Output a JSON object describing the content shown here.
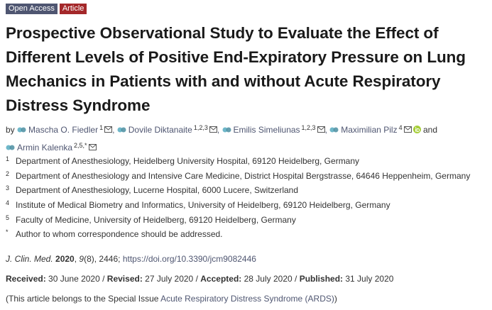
{
  "badges": {
    "open_access": "Open Access",
    "type": "Article"
  },
  "title": "Prospective Observational Study to Evaluate the Effect of Different Levels of Positive End-Expiratory Pressure on Lung Mechanics in Patients with and without Acute Respiratory Distress Syndrome",
  "authors": {
    "by": "by",
    "list": [
      {
        "name": "Mascha O. Fiedler",
        "aff": "1"
      },
      {
        "name": "Dovile Diktanaite",
        "aff": "1,2,3"
      },
      {
        "name": "Emilis Simeliunas",
        "aff": "1,2,3"
      },
      {
        "name": "Maximilian Pilz",
        "aff": "4"
      },
      {
        "name": "Armin Kalenka",
        "aff": "2,5,*"
      }
    ],
    "and": "and"
  },
  "affiliations": [
    {
      "num": "1",
      "text": "Department of Anesthesiology, Heidelberg University Hospital, 69120 Heidelberg, Germany"
    },
    {
      "num": "2",
      "text": "Department of Anesthesiology and Intensive Care Medicine, District Hospital Bergstrasse, 64646 Heppenheim, Germany"
    },
    {
      "num": "3",
      "text": "Department of Anesthesiology, Lucerne Hospital, 6000 Lucere, Switzerland"
    },
    {
      "num": "4",
      "text": "Institute of Medical Biometry and Informatics, University of Heidelberg, 69120 Heidelberg, Germany"
    },
    {
      "num": "5",
      "text": "Faculty of Medicine, University of Heidelberg, 69120 Heidelberg, Germany"
    },
    {
      "num": "*",
      "text": "Author to whom correspondence should be addressed."
    }
  ],
  "citation": {
    "journal": "J. Clin. Med.",
    "year": "2020",
    "volume": "9",
    "issue_pages": "(8), 2446;",
    "doi": "https://doi.org/10.3390/jcm9082446"
  },
  "dates": {
    "received_label": "Received:",
    "received": "30 June 2020",
    "revised_label": "Revised:",
    "revised": "27 July 2020",
    "accepted_label": "Accepted:",
    "accepted": "28 July 2020",
    "published_label": "Published:",
    "published": "31 July 2020"
  },
  "special_issue": {
    "prefix": "(This article belongs to the Special Issue",
    "link": "Acute Respiratory Distress Syndrome (ARDS)",
    "suffix": ")"
  },
  "colors": {
    "link": "#4f5671",
    "badge_open_access": "#4f5671",
    "badge_article": "#a4282a"
  }
}
